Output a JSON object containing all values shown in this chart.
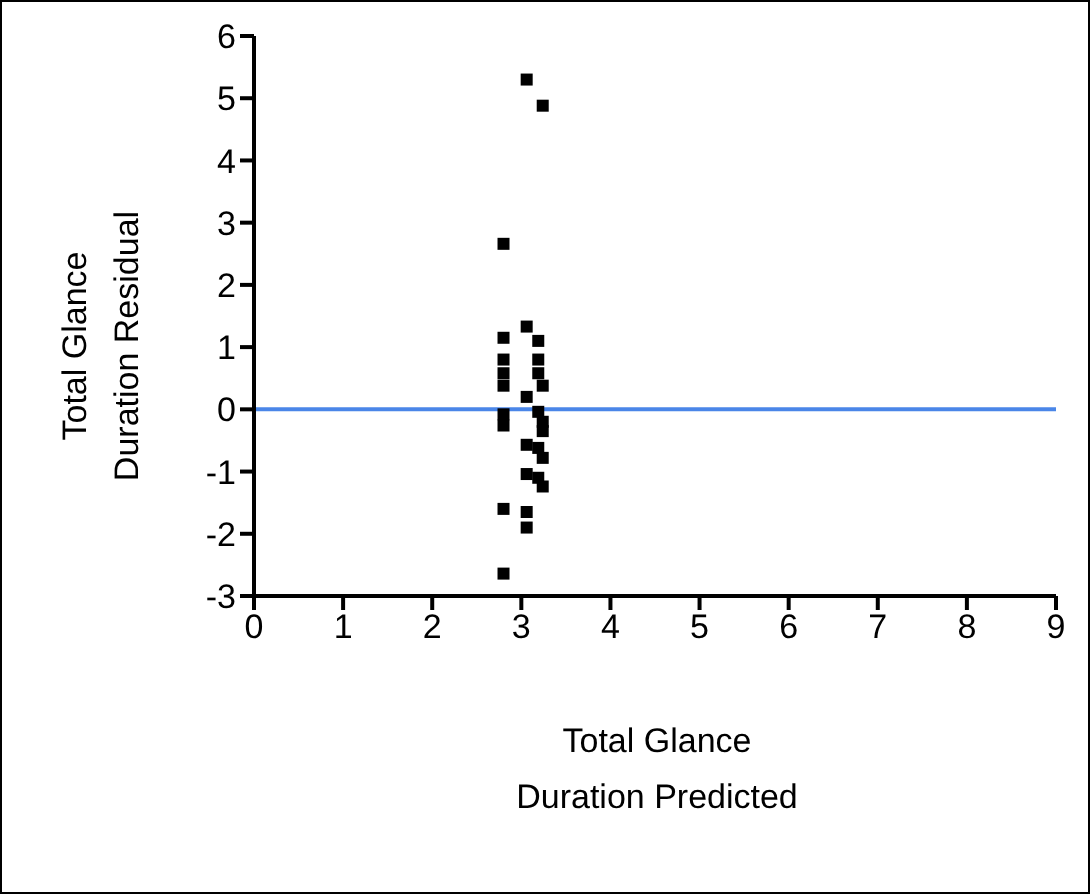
{
  "chart_data": {
    "type": "scatter",
    "xlabel": "Total Glance\nDuration Predicted",
    "ylabel": "Total Glance\nDuration Residual",
    "x": [
      3.06,
      3.24,
      2.8,
      2.8,
      3.06,
      3.19,
      2.8,
      3.19,
      2.8,
      3.19,
      2.8,
      3.24,
      3.06,
      3.19,
      2.8,
      2.8,
      3.24,
      3.24,
      3.06,
      3.19,
      3.24,
      3.06,
      3.19,
      3.24,
      2.8,
      3.06,
      3.06,
      2.8
    ],
    "values": [
      5.3,
      4.88,
      2.66,
      1.15,
      1.33,
      1.1,
      0.8,
      0.8,
      0.58,
      0.58,
      0.38,
      0.38,
      0.2,
      -0.04,
      -0.08,
      -0.26,
      -0.2,
      -0.35,
      -0.57,
      -0.62,
      -0.78,
      -1.04,
      -1.1,
      -1.24,
      -1.6,
      -1.65,
      -1.9,
      -2.64
    ],
    "color": "#000000",
    "marker": "square",
    "xlim": [
      0,
      9
    ],
    "xticks": [
      0,
      1,
      2,
      3,
      4,
      5,
      6,
      7,
      8,
      9
    ],
    "ylim": [
      -3,
      6
    ],
    "yticks": [
      -3,
      -2,
      -1,
      0,
      1,
      2,
      3,
      4,
      5,
      6
    ],
    "ref_lines": [
      {
        "axis": "y",
        "value": 0,
        "color": "#4a86e8"
      }
    ],
    "grid": false,
    "legend": false
  }
}
